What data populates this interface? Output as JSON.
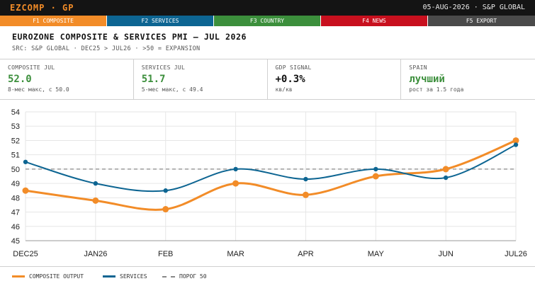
{
  "header": {
    "brand": "EZCOMP · GP",
    "right": "05-AUG-2026 · S&P GLOBAL"
  },
  "fkeys": [
    {
      "label": "F1 COMPOSITE",
      "color": "#f28c28"
    },
    {
      "label": "F2 SERVICES",
      "color": "#0d6592"
    },
    {
      "label": "F3 COUNTRY",
      "color": "#3c8f3c"
    },
    {
      "label": "F4 NEWS",
      "color": "#c8101e"
    },
    {
      "label": "F5 EXPORT",
      "color": "#4a4a4a"
    }
  ],
  "title": "EUROZONE COMPOSITE & SERVICES PMI — JUL 2026",
  "subtitle": "SRC: S&P GLOBAL · DEC25 > JUL26 · >50 = EXPANSION",
  "kpis": [
    {
      "label": "COMPOSITE JUL",
      "value": "52.0",
      "sub": "8-мес макс, с 50.0",
      "color": "#3c8f3c"
    },
    {
      "label": "SERVICES JUL",
      "value": "51.7",
      "sub": "5-мес макс, с 49.4",
      "color": "#3c8f3c"
    },
    {
      "label": "GDP SIGNAL",
      "value": "+0.3%",
      "sub": "кв/кв",
      "color": "#111111"
    },
    {
      "label": "SPAIN",
      "value": "лучший",
      "sub": "рост за 1.5 года",
      "color": "#3c8f3c"
    }
  ],
  "chart_data": {
    "type": "line",
    "categories": [
      "DEC25",
      "JAN26",
      "FEB",
      "MAR",
      "APR",
      "MAY",
      "JUN",
      "JUL26"
    ],
    "series": [
      {
        "name": "COMPOSITE OUTPUT",
        "values": [
          48.5,
          47.8,
          47.2,
          49.0,
          48.2,
          49.5,
          50.0,
          52.0
        ],
        "color": "#f28c28"
      },
      {
        "name": "SERVICES",
        "values": [
          50.5,
          49.0,
          48.5,
          50.0,
          49.3,
          50.0,
          49.4,
          51.7
        ],
        "color": "#0d6592"
      }
    ],
    "threshold": {
      "name": "ПОРОГ 50",
      "value": 50,
      "color": "#888888"
    },
    "ylim": [
      45,
      54
    ],
    "yticks": [
      45,
      46,
      47,
      48,
      49,
      50,
      51,
      52,
      53,
      54
    ],
    "grid": true,
    "legend": "bottom-left"
  }
}
